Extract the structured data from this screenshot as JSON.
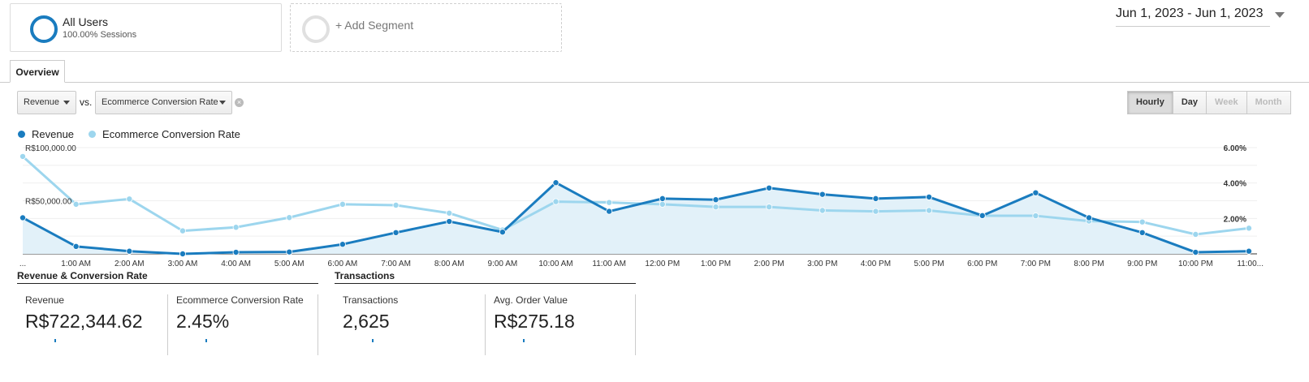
{
  "segments": {
    "all_users": {
      "title": "All Users",
      "subtitle": "100.00% Sessions"
    },
    "add_segment": {
      "label": "+ Add Segment"
    }
  },
  "date_range": "Jun 1, 2023 - Jun 1, 2023",
  "tabs": [
    {
      "label": "Overview"
    }
  ],
  "metric_selectors": {
    "primary": "Revenue",
    "vs_label": "vs.",
    "secondary": "Ecommerce Conversion Rate"
  },
  "granularity": {
    "options": [
      "Hourly",
      "Day",
      "Week",
      "Month"
    ],
    "active": "Hourly",
    "disabled": [
      "Week",
      "Month"
    ]
  },
  "legend": [
    {
      "label": "Revenue",
      "color": "#1a7cbf"
    },
    {
      "label": "Ecommerce Conversion Rate",
      "color": "#9dd6ee"
    }
  ],
  "chart_data": {
    "type": "line",
    "categories": [
      "...",
      "1:00 AM",
      "2:00 AM",
      "3:00 AM",
      "4:00 AM",
      "5:00 AM",
      "6:00 AM",
      "7:00 AM",
      "8:00 AM",
      "9:00 AM",
      "10:00 AM",
      "11:00 AM",
      "12:00 PM",
      "1:00 PM",
      "2:00 PM",
      "3:00 PM",
      "4:00 PM",
      "5:00 PM",
      "6:00 PM",
      "7:00 PM",
      "8:00 PM",
      "9:00 PM",
      "10:00 PM",
      "11:00..."
    ],
    "series": [
      {
        "name": "Revenue",
        "axis": "left",
        "color": "#1a7cbf",
        "values": [
          34000,
          7000,
          2500,
          0,
          1500,
          1800,
          9000,
          20000,
          30500,
          20500,
          67000,
          40000,
          52000,
          51000,
          62000,
          56000,
          52000,
          53500,
          36000,
          57500,
          34000,
          20000,
          1500,
          2500
        ]
      },
      {
        "name": "Ecommerce Conversion Rate",
        "axis": "right",
        "color": "#9dd6ee",
        "values": [
          5.5,
          2.8,
          3.1,
          1.3,
          1.5,
          2.05,
          2.8,
          2.75,
          2.3,
          1.35,
          2.95,
          2.9,
          2.8,
          2.65,
          2.65,
          2.45,
          2.4,
          2.45,
          2.15,
          2.15,
          1.85,
          1.8,
          1.1,
          1.45
        ]
      }
    ],
    "y_left": {
      "min": 0,
      "max": 100000,
      "ticks": [
        "R$50,000.00",
        "R$100,000.00"
      ]
    },
    "y_right": {
      "min": 0,
      "max": 6,
      "ticks": [
        "2.00%",
        "4.00%",
        "6.00%"
      ]
    },
    "grid": true,
    "area_fill": "Revenue"
  },
  "scorecard_groups": [
    {
      "title": "Revenue & Conversion Rate",
      "cards": [
        {
          "label": "Revenue",
          "value": "R$722,344.62"
        },
        {
          "label": "Ecommerce Conversion Rate",
          "value": "2.45%"
        }
      ]
    },
    {
      "title": "Transactions",
      "cards": [
        {
          "label": "Transactions",
          "value": "2,625"
        },
        {
          "label": "Avg. Order Value",
          "value": "R$275.18"
        }
      ]
    }
  ]
}
